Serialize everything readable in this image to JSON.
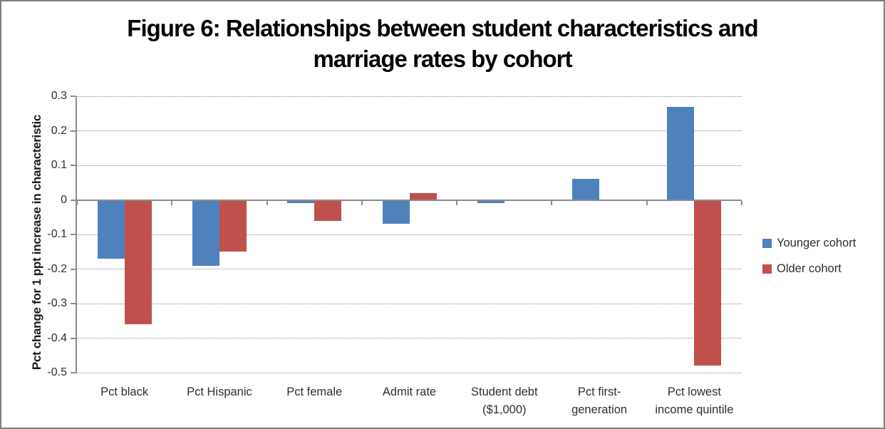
{
  "window": {
    "background": "#ffffff",
    "border_color": "#7f7f7f"
  },
  "chart_data": {
    "type": "bar",
    "title": "Figure 6: Relationships between student characteristics and marriage rates by cohort",
    "title_lines": [
      "Figure 6: Relationships between student characteristics and",
      "marriage rates by cohort"
    ],
    "ylabel": "Pct change for 1 ppt increase in characteristic",
    "xlabel": "",
    "ylim": [
      -0.5,
      0.3
    ],
    "grid": true,
    "legend_position": "right",
    "y_ticks": [
      {
        "value": 0.3,
        "label": "0.3"
      },
      {
        "value": 0.2,
        "label": "0.2"
      },
      {
        "value": 0.1,
        "label": "0.1"
      },
      {
        "value": 0,
        "label": "0"
      },
      {
        "value": -0.1,
        "label": "-0.1"
      },
      {
        "value": -0.2,
        "label": "-0.2"
      },
      {
        "value": -0.3,
        "label": "-0.3"
      },
      {
        "value": -0.4,
        "label": "-0.4"
      },
      {
        "value": -0.5,
        "label": "-0.5"
      }
    ],
    "categories": [
      "Pct black",
      "Pct Hispanic",
      "Pct female",
      "Admit rate",
      "Student debt ($1,000)",
      "Pct first-generation",
      "Pct lowest income quintile"
    ],
    "category_label_lines": [
      [
        "Pct black"
      ],
      [
        "Pct Hispanic"
      ],
      [
        "Pct female"
      ],
      [
        "Admit rate"
      ],
      [
        "Student debt",
        "($1,000)"
      ],
      [
        "Pct first-",
        "generation"
      ],
      [
        "Pct lowest",
        "income quintile"
      ]
    ],
    "series": [
      {
        "name": "Younger cohort",
        "color": "#4F81BD",
        "values": [
          -0.17,
          -0.19,
          -0.01,
          -0.07,
          -0.01,
          0.06,
          0.27
        ]
      },
      {
        "name": "Older cohort",
        "color": "#C0504D",
        "values": [
          -0.36,
          -0.15,
          -0.06,
          0.02,
          0.0,
          0.0,
          -0.48
        ]
      }
    ],
    "colors": {
      "gridline": "#8c8c8c",
      "axis": "#8c8c8c",
      "title_text": "#000000",
      "label_text": "#2e2e2e"
    }
  }
}
